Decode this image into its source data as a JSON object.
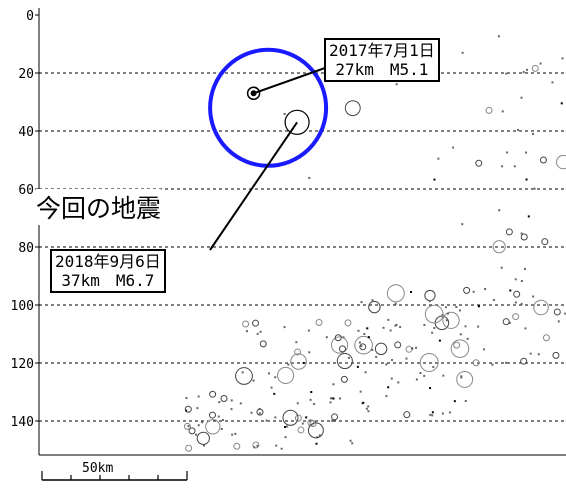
{
  "chart_data": {
    "type": "scatter",
    "title": "",
    "xlabel": "",
    "ylabel": "",
    "ylim": [
      0,
      150
    ],
    "yticks": [
      0,
      20,
      40,
      60,
      80,
      100,
      120,
      140
    ],
    "grid": "horizontal dashed",
    "colors": {
      "circle_highlight": "#1a1aff",
      "grid": "#000000",
      "marker": "#666666"
    },
    "clusters": [
      {
        "xkm": [
          82,
          212
        ],
        "depth": [
          2,
          60
        ],
        "count": 28
      },
      {
        "xkm": [
          155,
          175
        ],
        "depth": [
          20,
          60
        ],
        "count": 10
      },
      {
        "xkm": [
          180,
          238
        ],
        "depth": [
          80,
          115
        ],
        "count": 40
      },
      {
        "xkm": [
          200,
          240
        ],
        "depth": [
          40,
          120
        ],
        "count": 25
      },
      {
        "xkm": [
          228,
          250
        ],
        "depth": [
          50,
          80
        ],
        "count": 90
      },
      {
        "xkm": [
          50,
          110
        ],
        "depth": [
          130,
          150
        ],
        "count": 60
      },
      {
        "xkm": [
          70,
          150
        ],
        "depth": [
          105,
          140
        ],
        "count": 90
      },
      {
        "xkm": [
          110,
          180
        ],
        "depth": [
          95,
          125
        ],
        "count": 50
      },
      {
        "xkm": [
          145,
          200
        ],
        "depth": [
          65,
          105
        ],
        "count": 30
      },
      {
        "xkm": [
          180,
          240
        ],
        "depth": [
          8,
          60
        ],
        "count": 35
      }
    ],
    "events": [
      {
        "xkm": 89,
        "depth": 37,
        "magnitude": 6.7,
        "date": "2018年9月6日",
        "detail": "37km　M6.7"
      },
      {
        "xkm": 74,
        "depth": 27,
        "magnitude": 5.1,
        "date": "2017年7月1日",
        "detail": "27km　M5.1"
      }
    ],
    "highlight_circle": {
      "xkm": 79,
      "depth": 32,
      "radius_km": 20
    },
    "annotation": "今回の地震",
    "scale_bar": {
      "label": "50km",
      "length_km": 50
    }
  }
}
